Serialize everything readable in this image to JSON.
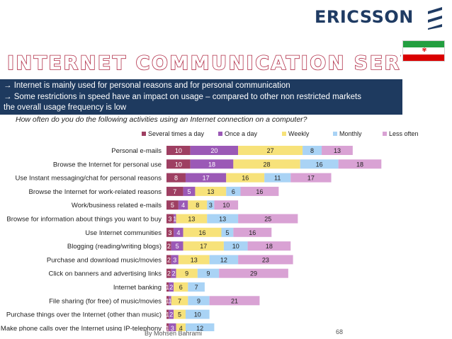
{
  "brand": "ERICSSON",
  "title": "INTERNET COMMUNICATION SERVICES",
  "bullets": [
    "Internet is mainly used for personal reasons and for personal communication",
    "Some restrictions in speed have an impact on usage – compared to other non restricted markets"
  ],
  "bullet_continuation": "the overall usage frequency is low",
  "bullet_icon": "right-arrow-icon",
  "question": "How often do you do the following activities using an Internet connection on a computer?",
  "footer": "By Mohsen Bahrami",
  "page_number": "68",
  "colors": {
    "banner": "#1e3a5f",
    "title_outline": "#b2304a",
    "brand": "#1f3b63"
  },
  "chart_data": {
    "type": "bar",
    "orientation": "horizontal",
    "stacked": true,
    "title": "",
    "xlabel": "",
    "ylabel": "",
    "legend_position": "top",
    "categories": [
      "Personal e-mails",
      "Browse the Internet for personal use",
      "Use Instant messaging/chat for personal reasons",
      "Browse the Internet for work-related reasons",
      "Work/business related e-mails",
      "Browse for information about things you want to buy",
      "Use Internet communities",
      "Blogging (reading/writing blogs)",
      "Purchase and download music/movies",
      "Click on banners and advertising links",
      "Internet banking",
      "File sharing (for free) of music/movies",
      "Purchase things over the Internet (other than music)",
      "Make phone calls over the Internet using IP-telephony"
    ],
    "series": [
      {
        "name": "Several times a day",
        "color": "#9e3f62",
        "values": [
          10,
          10,
          8,
          7,
          5,
          3,
          3,
          2,
          2,
          2,
          1,
          1,
          1,
          1
        ]
      },
      {
        "name": "Once a day",
        "color": "#9b59b6",
        "values": [
          20,
          18,
          17,
          5,
          4,
          1,
          4,
          5,
          3,
          2,
          2,
          1,
          2,
          3
        ]
      },
      {
        "name": "Weekly",
        "color": "#f7e27a",
        "values": [
          27,
          28,
          16,
          13,
          8,
          13,
          16,
          17,
          13,
          9,
          6,
          7,
          5,
          4
        ]
      },
      {
        "name": "Monthly",
        "color": "#a9d3f5",
        "values": [
          8,
          16,
          11,
          6,
          3,
          13,
          5,
          10,
          12,
          9,
          7,
          9,
          10,
          12
        ]
      },
      {
        "name": "Less often",
        "color": "#d9a2d4",
        "values": [
          13,
          18,
          17,
          16,
          10,
          25,
          16,
          18,
          23,
          29,
          null,
          21,
          null,
          null
        ]
      }
    ],
    "grid": false
  }
}
